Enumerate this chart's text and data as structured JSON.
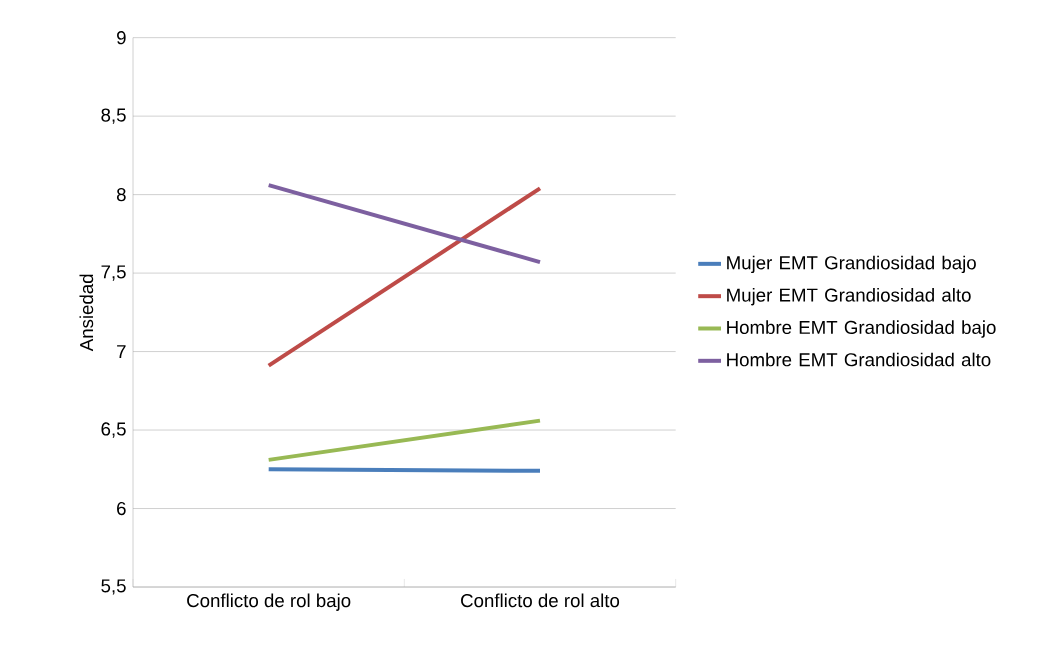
{
  "chart_data": {
    "type": "line",
    "ylabel": "Ansiedad",
    "categories": [
      "Conflicto de rol bajo",
      "Conflicto de rol alto"
    ],
    "series": [
      {
        "name": "Mujer EMT Grandiosidad bajo",
        "color": "#4a7ebb",
        "values": [
          6.25,
          6.24
        ]
      },
      {
        "name": "Mujer EMT Grandiosidad alto",
        "color": "#be4b48",
        "values": [
          6.91,
          8.04
        ]
      },
      {
        "name": "Hombre EMT Grandiosidad bajo",
        "color": "#98b954",
        "values": [
          6.31,
          6.56
        ]
      },
      {
        "name": "Hombre EMT Grandiosidad alto",
        "color": "#7d60a0",
        "values": [
          8.06,
          7.57
        ]
      }
    ],
    "ylim": [
      5.5,
      9
    ],
    "yticks": [
      {
        "value": 5.5,
        "label": "5,5"
      },
      6,
      {
        "value": 6.5,
        "label": "6,5"
      },
      7,
      {
        "value": 7.5,
        "label": "7,5"
      },
      8,
      {
        "value": 8.5,
        "label": "8,5"
      },
      9
    ],
    "grid": "y",
    "legend": "right",
    "marker": "none",
    "line_style": "solid"
  }
}
